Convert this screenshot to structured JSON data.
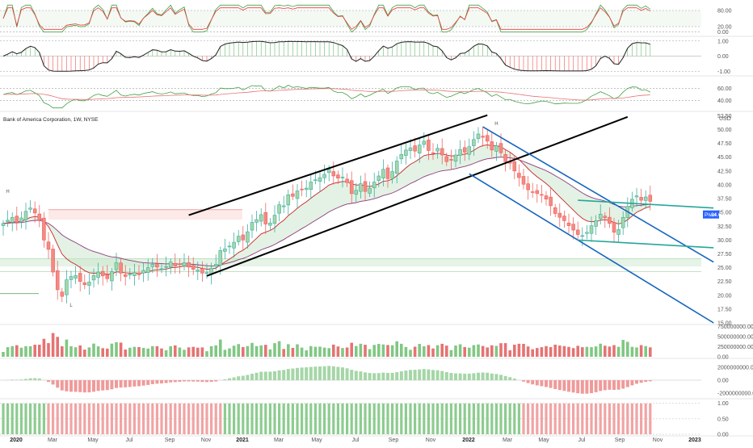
{
  "chart_data": {
    "type": "candlestick",
    "title": "Bank of America Corporation, 1W, NYSE",
    "currency_label": "USD",
    "colors": {
      "up": "#26a69a",
      "up_body": "#a5d6a7",
      "down": "#ef5350",
      "down_body": "#f28b82",
      "neutral": "#555555",
      "trend": "#000000",
      "channel": "#1565c0",
      "range": "#26a69a",
      "tag": "#2962ff"
    },
    "time_axis": [
      {
        "label": "2020",
        "bold": true
      },
      {
        "label": "Mar"
      },
      {
        "label": "May"
      },
      {
        "label": "Jul"
      },
      {
        "label": "Sep"
      },
      {
        "label": "Nov"
      },
      {
        "label": "2021",
        "bold": true
      },
      {
        "label": "Mar"
      },
      {
        "label": "May"
      },
      {
        "label": "Jul"
      },
      {
        "label": "Sep"
      },
      {
        "label": "Nov"
      },
      {
        "label": "2022",
        "bold": true
      },
      {
        "label": "Mar"
      },
      {
        "label": "May"
      },
      {
        "label": "Jul"
      },
      {
        "label": "Sep"
      },
      {
        "label": "Nov"
      },
      {
        "label": "2023",
        "bold": true
      }
    ],
    "panes": [
      {
        "id": "stoch",
        "name": "stochastic-pane",
        "ylim": [
          -10,
          110
        ],
        "ticks": [
          "80.00",
          "20.00",
          "0.00"
        ],
        "tick_values": [
          80,
          20,
          0
        ]
      },
      {
        "id": "mom",
        "name": "momentum-pane",
        "ylim": [
          -1.2,
          1.2
        ],
        "ticks": [
          "1.00",
          "0.00",
          "-1.00"
        ],
        "tick_values": [
          1,
          0,
          -1
        ]
      },
      {
        "id": "rsi",
        "name": "rsi-pane",
        "ylim": [
          25,
          75
        ],
        "ticks": [
          "60.00",
          "40.00"
        ],
        "tick_values": [
          60,
          40
        ]
      },
      {
        "id": "price",
        "name": "price-pane",
        "ylim": [
          15,
          53
        ],
        "ticks": [
          "52.50",
          "50.00",
          "47.50",
          "45.00",
          "42.50",
          "40.00",
          "37.50",
          "35.00",
          "32.50",
          "30.00",
          "27.50",
          "25.00",
          "22.50",
          "20.00",
          "17.50",
          "15.00"
        ],
        "tick_values": [
          52.5,
          50,
          47.5,
          45,
          42.5,
          40,
          37.5,
          35,
          32.5,
          30,
          27.5,
          25,
          22.5,
          20,
          17.5,
          15
        ]
      },
      {
        "id": "vol",
        "name": "volume-pane",
        "ylim": [
          0,
          800000000
        ],
        "ticks": [
          "750000000.00",
          "500000000.00",
          "250000000.00",
          "0.00"
        ],
        "tick_values": [
          750000000,
          500000000,
          250000000,
          0
        ]
      },
      {
        "id": "osc",
        "name": "oscillator-pane",
        "ylim": [
          -2600000000,
          2600000000
        ],
        "ticks": [
          "2000000000.00",
          "0.00",
          "-2000000000.00"
        ],
        "tick_values": [
          2000000000,
          0,
          -2000000000
        ]
      },
      {
        "id": "trend",
        "name": "trend-strength-pane",
        "ylim": [
          0,
          1.15
        ],
        "ticks": [
          "1.00",
          "0.50",
          "0.00"
        ],
        "tick_values": [
          1,
          0.5,
          0
        ]
      }
    ],
    "price_tags": [
      {
        "label": "Pivot",
        "value": "34.63",
        "price": 34.63
      }
    ],
    "markers": [
      {
        "label": "H",
        "price": 38.5,
        "week": 1
      },
      {
        "label": "H",
        "price": 50.8,
        "week": 109
      },
      {
        "label": "L",
        "price": 17.9,
        "week": 15
      }
    ],
    "weekly_close": [
      33.0,
      33.6,
      34.1,
      33.2,
      34.0,
      35.2,
      35.8,
      34.9,
      33.6,
      30.0,
      28.3,
      24.2,
      21.0,
      19.8,
      22.8,
      23.4,
      23.6,
      22.5,
      21.9,
      22.4,
      23.6,
      24.2,
      23.5,
      23.0,
      24.3,
      25.9,
      24.0,
      23.4,
      23.8,
      24.1,
      23.7,
      24.5,
      25.0,
      25.6,
      25.1,
      24.8,
      25.2,
      26.0,
      25.3,
      25.6,
      25.9,
      25.1,
      24.7,
      24.6,
      24.0,
      24.1,
      24.9,
      25.6,
      28.1,
      28.4,
      28.9,
      29.6,
      30.7,
      30.0,
      31.5,
      33.2,
      33.7,
      34.6,
      32.9,
      33.1,
      34.5,
      36.4,
      36.2,
      38.2,
      37.9,
      38.9,
      39.2,
      39.4,
      40.5,
      40.9,
      41.3,
      41.9,
      42.8,
      41.6,
      41.2,
      41.4,
      40.4,
      38.4,
      39.0,
      40.2,
      38.8,
      39.4,
      40.5,
      41.6,
      42.8,
      41.1,
      42.4,
      44.3,
      45.5,
      46.3,
      46.7,
      46.1,
      47.2,
      47.9,
      46.2,
      45.8,
      46.6,
      45.4,
      44.2,
      44.5,
      45.4,
      46.4,
      45.9,
      46.9,
      48.2,
      49.2,
      48.6,
      47.9,
      46.3,
      47.1,
      45.8,
      44.2,
      43.9,
      42.5,
      41.3,
      40.1,
      39.1,
      38.6,
      38.4,
      38.2,
      37.4,
      36.2,
      34.8,
      34.1,
      33.5,
      32.6,
      31.8,
      31.0,
      30.8,
      31.4,
      32.6,
      33.5,
      34.7,
      34.0,
      33.0,
      31.4,
      31.9,
      34.1,
      36.1,
      37.4,
      38.0,
      37.2,
      37.8,
      37.0
    ]
  }
}
